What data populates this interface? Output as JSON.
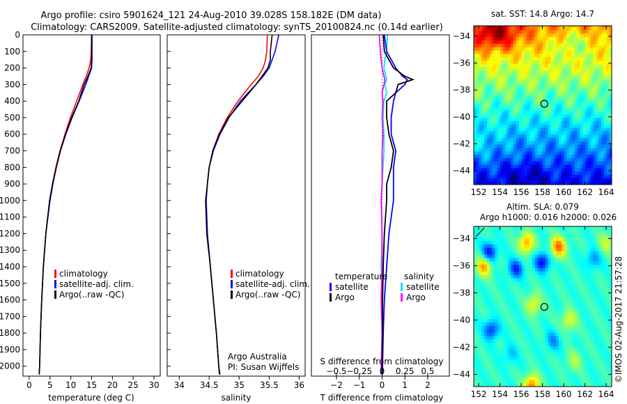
{
  "title_line1": "Argo profile: csiro 5901624_121 24-Aug-2010 39.028S 158.182E (DM data)",
  "title_line2": "Climatology: CARS2009. Satellite-adjusted climatology: synTS_20100824.nc (0.14d earlier)",
  "colors": {
    "climatology": "#ff0000",
    "satellite": "#0000ff",
    "argo": "#000000",
    "sal_satellite": "#00e5ee",
    "sal_argo": "#ff00ff"
  },
  "chart_data": [
    {
      "type": "line",
      "xlabel": "temperature (deg C)",
      "ylabel": "",
      "xlim": [
        -1.5,
        31.5
      ],
      "ylim": [
        2060,
        0
      ],
      "xticks": [
        0,
        5,
        10,
        15,
        20,
        25,
        30
      ],
      "yticks": [
        0,
        100,
        200,
        300,
        400,
        500,
        600,
        700,
        800,
        900,
        1000,
        1100,
        1200,
        1300,
        1400,
        1500,
        1600,
        1700,
        1800,
        1900,
        2000
      ],
      "depth": [
        0,
        100,
        150,
        200,
        250,
        300,
        400,
        500,
        600,
        700,
        800,
        900,
        1000,
        1200,
        1400,
        1600,
        1800,
        2000,
        2050
      ],
      "series": [
        {
          "name": "climatology",
          "values": [
            15,
            14.9,
            14.8,
            14.4,
            13.7,
            12.9,
            11.4,
            9.9,
            8.6,
            7.4,
            6.4,
            5.6,
            4.9,
            4.0,
            3.4,
            3.0,
            2.7,
            2.5,
            2.4
          ]
        },
        {
          "name": "satellite-adj. clim.",
          "values": [
            15.1,
            15.1,
            15.1,
            15.0,
            14.3,
            13.6,
            12.0,
            10.3,
            8.8,
            7.5,
            6.5,
            5.7,
            5.0,
            4.0,
            3.4,
            3.0,
            2.7,
            2.5,
            2.4
          ]
        },
        {
          "name": "Argo(..raw -QC)",
          "values": [
            15.0,
            15.0,
            15.0,
            14.9,
            14.1,
            13.2,
            11.9,
            10.2,
            8.7,
            7.5,
            6.5,
            5.6,
            4.9,
            4.0,
            3.4,
            3.0,
            2.7,
            2.5,
            2.4
          ]
        }
      ]
    },
    {
      "type": "line",
      "xlabel": "salinity",
      "xlim": [
        33.8,
        36.1
      ],
      "ylim": [
        2060,
        0
      ],
      "xticks": [
        34,
        34.5,
        35,
        35.5,
        36
      ],
      "depth": [
        0,
        100,
        150,
        200,
        250,
        300,
        400,
        500,
        600,
        700,
        800,
        900,
        1000,
        1200,
        1400,
        1600,
        1800,
        2000,
        2050
      ],
      "series": [
        {
          "name": "climatology",
          "values": [
            35.47,
            35.46,
            35.44,
            35.4,
            35.32,
            35.2,
            34.98,
            34.8,
            34.66,
            34.56,
            34.5,
            34.47,
            34.45,
            34.47,
            34.52,
            34.57,
            34.62,
            34.66,
            34.68
          ]
        },
        {
          "name": "satellite-adj. clim.",
          "values": [
            35.66,
            35.6,
            35.55,
            35.5,
            35.4,
            35.28,
            35.02,
            34.83,
            34.68,
            34.57,
            34.5,
            34.47,
            34.45,
            34.47,
            34.52,
            34.57,
            34.62,
            34.66,
            34.68
          ]
        },
        {
          "name": "Argo(..raw -QC)",
          "values": [
            35.55,
            35.52,
            35.52,
            35.48,
            35.38,
            35.28,
            35.05,
            34.82,
            34.67,
            34.56,
            34.5,
            34.47,
            34.44,
            34.46,
            34.52,
            34.57,
            34.62,
            34.66,
            34.67
          ]
        }
      ]
    },
    {
      "type": "line",
      "xlabel": "T difference from climatology",
      "x2label": "S difference from climatology",
      "xlim": [
        -3.1,
        2.95
      ],
      "ylim": [
        2060,
        0
      ],
      "xticks": [
        -2,
        -1,
        0,
        1,
        2
      ],
      "x2ticks": [
        -0.5,
        -0.25,
        0,
        0.25,
        0.5
      ],
      "depth": [
        0,
        100,
        150,
        200,
        250,
        270,
        300,
        350,
        400,
        500,
        600,
        700,
        800,
        900,
        1000,
        1200,
        1400,
        1600,
        1800,
        2000,
        2050
      ],
      "series": [
        {
          "name": "temperature satellite",
          "unit": "T",
          "values": [
            0.1,
            0.2,
            0.4,
            0.6,
            0.9,
            1.1,
            1.0,
            0.6,
            0.5,
            0.4,
            0.4,
            0.6,
            0.5,
            0.5,
            0.5,
            0.3,
            0.2,
            0.1,
            0.05,
            0.02,
            0.02
          ]
        },
        {
          "name": "temperature Argo",
          "unit": "T",
          "values": [
            0.05,
            0.1,
            0.3,
            0.5,
            1.0,
            1.35,
            0.7,
            0.6,
            0.2,
            0.2,
            0.3,
            0.5,
            0.4,
            0.2,
            0.2,
            0.1,
            0.05,
            0.02,
            0.02,
            0.0,
            0.0
          ]
        },
        {
          "name": "salinity satellite",
          "unit": "S",
          "values": [
            0.06,
            0.05,
            0.03,
            0.02,
            0.04,
            0.05,
            0.03,
            0.05,
            0.02,
            0.01,
            0.02,
            0.02,
            0.01,
            0.0,
            -0.01,
            0.0,
            -0.01,
            0.0,
            0.0,
            0.0,
            0.0
          ]
        },
        {
          "name": "salinity Argo",
          "unit": "S",
          "values": [
            -0.03,
            -0.02,
            -0.01,
            0.0,
            0.02,
            0.03,
            0.02,
            0.0,
            0.01,
            0.0,
            0.01,
            0.0,
            0.0,
            0.0,
            -0.01,
            0.0,
            0.0,
            -0.01,
            0.0,
            -0.01,
            -0.01
          ]
        }
      ]
    },
    {
      "type": "heatmap",
      "title": "sat. SST: 14.8 Argo: 14.7",
      "xticks": [
        152,
        154,
        156,
        158,
        160,
        162,
        164
      ],
      "yticks": [
        -34,
        -36,
        -38,
        -40,
        -42,
        -44
      ],
      "xlim": [
        151.54,
        164.52
      ],
      "ylim": [
        -45.04,
        -33.22
      ],
      "marker": {
        "lon": 158.182,
        "lat": -39.028
      }
    },
    {
      "type": "heatmap",
      "title": "Altim. SLA: 0.079",
      "subtitle": "Argo h1000: 0.016 h2000: 0.026",
      "xticks": [
        152,
        154,
        156,
        158,
        160,
        162,
        164
      ],
      "yticks": [
        -34,
        -36,
        -38,
        -40,
        -42,
        -44
      ],
      "xlim": [
        151.54,
        164.52
      ],
      "ylim": [
        -44.9,
        -33.1
      ],
      "marker": {
        "lon": 158.182,
        "lat": -39.028
      }
    }
  ],
  "legend_profiles": [
    "climatology",
    "satellite-adj. clim.",
    "Argo(..raw -QC)"
  ],
  "legend_diff": {
    "temperature": "temperature",
    "salinity": "salinity",
    "satellite": "satellite",
    "argo": "Argo"
  },
  "credit_line1": "Argo Australia",
  "credit_line2": "PI: Susan Wijffels",
  "copyright": "©IMOS 02-Aug-2017 21:57:28"
}
